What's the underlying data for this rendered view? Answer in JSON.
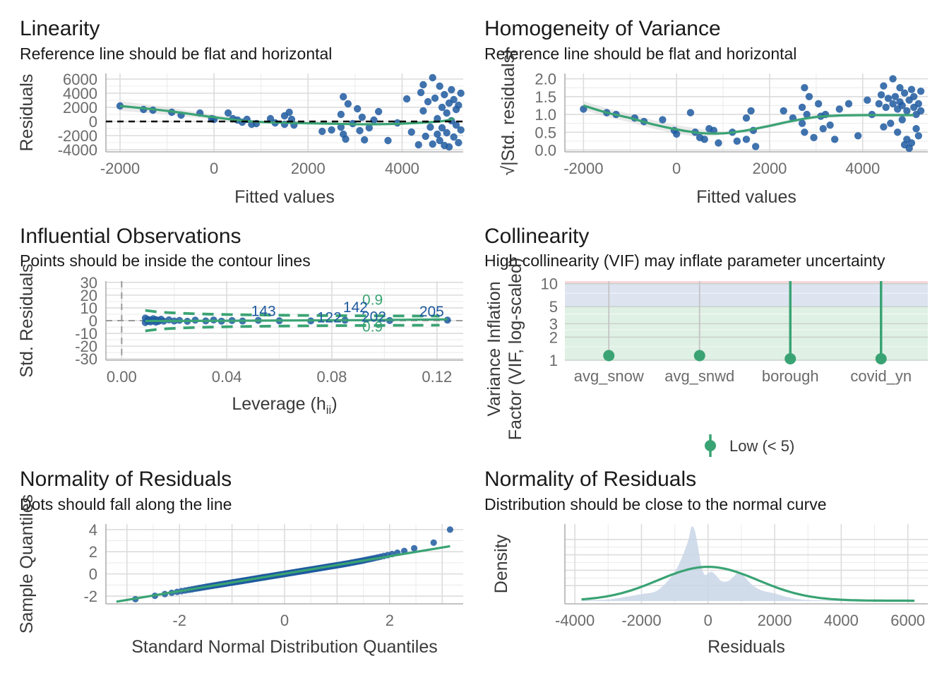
{
  "colors": {
    "points": "#1f5aa0",
    "line": "#3aa374",
    "band_high": "#f8d7db",
    "band_moderate": "#dde4f0",
    "band_low": "#dff0e4",
    "density_fill": "#c9d6e8"
  },
  "chart_data": [
    {
      "id": "linearity",
      "type": "scatter",
      "title": "Linearity",
      "subtitle": "Reference line should be flat and horizontal",
      "xlabel": "Fitted values",
      "ylabel": "Residuals",
      "xlim": [
        -2300,
        5300
      ],
      "ylim": [
        -4300,
        6800
      ],
      "xticks": [
        -2000,
        0,
        2000,
        4000
      ],
      "xtick_labels": [
        "-2000",
        "0",
        "2000",
        "4000"
      ],
      "yticks": [
        -4000,
        -2000,
        0,
        2000,
        4000,
        6000
      ],
      "ytick_labels": [
        "-4000",
        "-2000",
        "0",
        "2000",
        "4000",
        "6000"
      ],
      "reference_y": 0,
      "points": [
        [
          -2000,
          2200
        ],
        [
          -1500,
          1700
        ],
        [
          -1300,
          1600
        ],
        [
          -900,
          1300
        ],
        [
          -700,
          900
        ],
        [
          -300,
          1200
        ],
        [
          -50,
          400
        ],
        [
          0,
          300
        ],
        [
          300,
          1200
        ],
        [
          400,
          400
        ],
        [
          500,
          200
        ],
        [
          600,
          -100
        ],
        [
          700,
          300
        ],
        [
          800,
          -400
        ],
        [
          900,
          -300
        ],
        [
          1200,
          400
        ],
        [
          1300,
          -200
        ],
        [
          1500,
          800
        ],
        [
          1500,
          -400
        ],
        [
          1600,
          1300
        ],
        [
          1650,
          300
        ],
        [
          1700,
          -500
        ],
        [
          2300,
          -1400
        ],
        [
          2500,
          -1200
        ],
        [
          2700,
          -800
        ],
        [
          2700,
          1000
        ],
        [
          2750,
          3500
        ],
        [
          2750,
          -1800
        ],
        [
          2800,
          -2500
        ],
        [
          2850,
          2500
        ],
        [
          2950,
          -300
        ],
        [
          3050,
          1800
        ],
        [
          3100,
          -1300
        ],
        [
          3150,
          600
        ],
        [
          3200,
          -2600
        ],
        [
          3300,
          -900
        ],
        [
          3400,
          200
        ],
        [
          3500,
          1400
        ],
        [
          3700,
          -2700
        ],
        [
          3900,
          -200
        ],
        [
          4100,
          3200
        ],
        [
          4200,
          -1500
        ],
        [
          4350,
          -3300
        ],
        [
          4400,
          4100
        ],
        [
          4450,
          5200
        ],
        [
          4450,
          1500
        ],
        [
          4500,
          -2100
        ],
        [
          4550,
          2800
        ],
        [
          4600,
          -800
        ],
        [
          4650,
          6200
        ],
        [
          4650,
          -3200
        ],
        [
          4700,
          3300
        ],
        [
          4750,
          -1800
        ],
        [
          4750,
          400
        ],
        [
          4800,
          5000
        ],
        [
          4800,
          -2700
        ],
        [
          4850,
          2000
        ],
        [
          4850,
          -900
        ],
        [
          4900,
          3800
        ],
        [
          4900,
          -3400
        ],
        [
          4950,
          1200
        ],
        [
          4950,
          -1600
        ],
        [
          5000,
          2600
        ],
        [
          5000,
          -3600
        ],
        [
          5050,
          4500
        ],
        [
          5050,
          100
        ],
        [
          5100,
          -2200
        ],
        [
          5100,
          3100
        ],
        [
          5150,
          -500
        ],
        [
          5150,
          1700
        ],
        [
          5200,
          -3000
        ],
        [
          5200,
          2300
        ],
        [
          5250,
          -1200
        ],
        [
          5250,
          4000
        ]
      ],
      "fit_line": [
        [
          -2000,
          2200
        ],
        [
          -1000,
          1500
        ],
        [
          0,
          600
        ],
        [
          800,
          0
        ],
        [
          1600,
          -200
        ],
        [
          2400,
          -300
        ],
        [
          3200,
          -400
        ],
        [
          4000,
          -300
        ],
        [
          4800,
          0
        ],
        [
          5100,
          400
        ]
      ],
      "series": []
    },
    {
      "id": "homogeneity",
      "type": "scatter",
      "title": "Homogeneity of Variance",
      "subtitle": "Reference line should be flat and horizontal",
      "xlabel": "Fitted values",
      "ylabel": "√|Std. residuals|",
      "xlim": [
        -2400,
        5400
      ],
      "ylim": [
        -0.05,
        2.15
      ],
      "xticks": [
        -2000,
        0,
        2000,
        4000
      ],
      "xtick_labels": [
        "-2000",
        "0",
        "2000",
        "4000"
      ],
      "yticks": [
        0.0,
        0.5,
        1.0,
        1.5,
        2.0
      ],
      "ytick_labels": [
        "0.0",
        "0.5",
        "1.0",
        "1.5",
        "2.0"
      ],
      "points": [
        [
          -2000,
          1.15
        ],
        [
          -1500,
          1.05
        ],
        [
          -1300,
          1.0
        ],
        [
          -900,
          0.9
        ],
        [
          -700,
          0.8
        ],
        [
          -300,
          0.85
        ],
        [
          -50,
          0.55
        ],
        [
          0,
          0.45
        ],
        [
          300,
          1.05
        ],
        [
          400,
          0.5
        ],
        [
          500,
          0.35
        ],
        [
          600,
          0.3
        ],
        [
          700,
          0.6
        ],
        [
          800,
          0.55
        ],
        [
          900,
          0.2
        ],
        [
          1200,
          0.5
        ],
        [
          1300,
          0.25
        ],
        [
          1500,
          0.9
        ],
        [
          1500,
          0.3
        ],
        [
          1600,
          1.1
        ],
        [
          1650,
          0.55
        ],
        [
          1700,
          0.1
        ],
        [
          2300,
          1.1
        ],
        [
          2500,
          0.9
        ],
        [
          2700,
          1.2
        ],
        [
          2700,
          0.75
        ],
        [
          2750,
          1.75
        ],
        [
          2750,
          0.5
        ],
        [
          2800,
          1.0
        ],
        [
          2850,
          1.5
        ],
        [
          2950,
          0.35
        ],
        [
          3050,
          1.3
        ],
        [
          3100,
          0.95
        ],
        [
          3150,
          0.6
        ],
        [
          3200,
          1.0
        ],
        [
          3300,
          0.7
        ],
        [
          3400,
          0.3
        ],
        [
          3500,
          1.15
        ],
        [
          3700,
          1.3
        ],
        [
          3900,
          0.4
        ],
        [
          4100,
          1.4
        ],
        [
          4200,
          1.0
        ],
        [
          4350,
          1.3
        ],
        [
          4400,
          1.55
        ],
        [
          4450,
          1.8
        ],
        [
          4450,
          0.65
        ],
        [
          4500,
          1.2
        ],
        [
          4550,
          1.45
        ],
        [
          4600,
          0.75
        ],
        [
          4650,
          2.0
        ],
        [
          4650,
          1.3
        ],
        [
          4700,
          1.5
        ],
        [
          4750,
          1.15
        ],
        [
          4750,
          0.5
        ],
        [
          4800,
          1.75
        ],
        [
          4800,
          1.35
        ],
        [
          4850,
          1.25
        ],
        [
          4850,
          0.85
        ],
        [
          4900,
          1.6
        ],
        [
          4900,
          0.15
        ],
        [
          4950,
          1.1
        ],
        [
          4950,
          0.3
        ],
        [
          5000,
          1.4
        ],
        [
          5000,
          0.05
        ],
        [
          5050,
          1.7
        ],
        [
          5050,
          0.2
        ],
        [
          5100,
          1.2
        ],
        [
          5100,
          1.5
        ],
        [
          5150,
          0.6
        ],
        [
          5150,
          1.0
        ],
        [
          5200,
          1.3
        ],
        [
          5200,
          0.4
        ],
        [
          5250,
          1.1
        ],
        [
          5250,
          1.65
        ]
      ],
      "fit_line": [
        [
          -2000,
          1.25
        ],
        [
          -1500,
          1.05
        ],
        [
          -1000,
          0.9
        ],
        [
          -500,
          0.72
        ],
        [
          0,
          0.58
        ],
        [
          500,
          0.48
        ],
        [
          1000,
          0.47
        ],
        [
          1500,
          0.55
        ],
        [
          2000,
          0.68
        ],
        [
          2500,
          0.82
        ],
        [
          3000,
          0.93
        ],
        [
          3500,
          0.97
        ],
        [
          4000,
          0.98
        ],
        [
          4500,
          0.98
        ],
        [
          5100,
          0.98
        ]
      ],
      "series": []
    },
    {
      "id": "influential",
      "type": "scatter",
      "title": "Influential Observations",
      "subtitle": "Points should be inside the contour lines",
      "xlabel": "Leverage (h",
      "xlabel_sub": "ii",
      "xlabel_end": ")",
      "ylabel": "Std. Residuals",
      "xlim": [
        -0.006,
        0.13
      ],
      "ylim": [
        -31,
        31
      ],
      "xticks": [
        0.0,
        0.04,
        0.08,
        0.12
      ],
      "xtick_labels": [
        "0.00",
        "0.04",
        "0.08",
        "0.12"
      ],
      "yticks": [
        -30,
        -20,
        -10,
        0,
        10,
        20,
        30
      ],
      "ytick_labels": [
        "-30",
        "-20",
        "-10",
        "0",
        "10",
        "20",
        "30"
      ],
      "cook_levels": [
        "0.9",
        "0.9"
      ],
      "labelled_points": [
        {
          "label": "143",
          "x": 0.054,
          "y": 1.5
        },
        {
          "label": "142",
          "x": 0.089,
          "y": 4.5
        },
        {
          "label": "122",
          "x": 0.079,
          "y": -3.5
        },
        {
          "label": "202",
          "x": 0.096,
          "y": -3.0
        },
        {
          "label": "205",
          "x": 0.118,
          "y": 1.0
        }
      ],
      "points": [
        [
          0.009,
          2.0
        ],
        [
          0.009,
          -1.5
        ],
        [
          0.01,
          1.0
        ],
        [
          0.01,
          -0.5
        ],
        [
          0.011,
          0.5
        ],
        [
          0.011,
          -1.0
        ],
        [
          0.012,
          1.5
        ],
        [
          0.012,
          0.0
        ],
        [
          0.013,
          -1.2
        ],
        [
          0.013,
          0.8
        ],
        [
          0.014,
          0.3
        ],
        [
          0.014,
          -0.6
        ],
        [
          0.015,
          1.1
        ],
        [
          0.016,
          -0.4
        ],
        [
          0.018,
          0.6
        ],
        [
          0.02,
          -0.3
        ],
        [
          0.022,
          0.2
        ],
        [
          0.025,
          -0.5
        ],
        [
          0.028,
          0.4
        ],
        [
          0.032,
          -0.2
        ],
        [
          0.035,
          0.5
        ],
        [
          0.038,
          -0.4
        ],
        [
          0.042,
          0.1
        ],
        [
          0.046,
          -0.3
        ],
        [
          0.052,
          0.2
        ],
        [
          0.06,
          -0.1
        ],
        [
          0.072,
          -0.2
        ],
        [
          0.085,
          0.3
        ],
        [
          0.102,
          0.1
        ],
        [
          0.124,
          0.4
        ]
      ],
      "fit_line": [
        [
          0.009,
          -0.3
        ],
        [
          0.05,
          0.0
        ],
        [
          0.09,
          0.4
        ],
        [
          0.124,
          1.0
        ]
      ],
      "series": []
    },
    {
      "id": "collinearity",
      "type": "bar",
      "title": "Collinearity",
      "subtitle": "High collinearity (VIF) may inflate parameter uncertainty",
      "xlabel": "",
      "ylabel_line1": "Variance Inflation",
      "ylabel_line2": "Factor (VIF, log-scaled)",
      "y_scale": "log",
      "ylim": [
        1,
        10.8
      ],
      "yticks": [
        1,
        2,
        3,
        5,
        10
      ],
      "ytick_labels": [
        "1",
        "2",
        "3",
        "5",
        "10"
      ],
      "categories": [
        "avg_snow",
        "avg_snwd",
        "borough",
        "covid_yn"
      ],
      "values": [
        1.1,
        1.1,
        1.0,
        1.0
      ],
      "upper_ci": [
        1.1,
        1.1,
        10.8,
        10.8
      ],
      "legend": {
        "label": "Low (< 5)",
        "position": "bottom"
      }
    },
    {
      "id": "qq",
      "type": "scatter",
      "title": "Normality of Residuals",
      "subtitle": "Dots should fall along the line",
      "xlabel": "Standard Normal Distribution Quantiles",
      "ylabel": "Sample Quantiles",
      "xlim": [
        -3.4,
        3.4
      ],
      "ylim": [
        -2.7,
        4.5
      ],
      "xticks": [
        -2,
        0,
        2
      ],
      "xtick_labels": [
        "-2",
        "0",
        "2"
      ],
      "yticks": [
        -2,
        0,
        2,
        4
      ],
      "ytick_labels": [
        "-2",
        "0",
        "2",
        "4"
      ],
      "fit_line": [
        [
          -3.2,
          -2.5
        ],
        [
          3.15,
          2.5
        ]
      ],
      "series": []
    },
    {
      "id": "density",
      "type": "area",
      "title": "Normality of Residuals",
      "subtitle": "Distribution should be close to the normal curve",
      "xlabel": "Residuals",
      "ylabel": "Density",
      "xlim": [
        -4300,
        6600
      ],
      "ylim": [
        0,
        1.0
      ],
      "xticks": [
        -4000,
        -2000,
        0,
        2000,
        4000,
        6000
      ],
      "xtick_labels": [
        "-4000",
        "-2000",
        "0",
        "2000",
        "4000",
        "6000"
      ],
      "density": [
        [
          -3800,
          0.01
        ],
        [
          -3000,
          0.02
        ],
        [
          -2400,
          0.06
        ],
        [
          -2000,
          0.09
        ],
        [
          -1600,
          0.12
        ],
        [
          -1300,
          0.22
        ],
        [
          -1000,
          0.38
        ],
        [
          -800,
          0.55
        ],
        [
          -600,
          0.78
        ],
        [
          -500,
          0.96
        ],
        [
          -400,
          0.92
        ],
        [
          -300,
          0.7
        ],
        [
          -200,
          0.45
        ],
        [
          -100,
          0.34
        ],
        [
          0,
          0.36
        ],
        [
          100,
          0.38
        ],
        [
          200,
          0.35
        ],
        [
          400,
          0.26
        ],
        [
          600,
          0.26
        ],
        [
          800,
          0.33
        ],
        [
          900,
          0.38
        ],
        [
          1000,
          0.36
        ],
        [
          1300,
          0.22
        ],
        [
          1600,
          0.14
        ],
        [
          2000,
          0.1
        ],
        [
          2400,
          0.05
        ],
        [
          2800,
          0.02
        ],
        [
          3400,
          0.01
        ],
        [
          4200,
          0.005
        ],
        [
          5000,
          0.004
        ],
        [
          6200,
          0.003
        ]
      ],
      "normal_curve": {
        "mean": 0,
        "sd": 1500,
        "peak": 0.44
      }
    }
  ]
}
